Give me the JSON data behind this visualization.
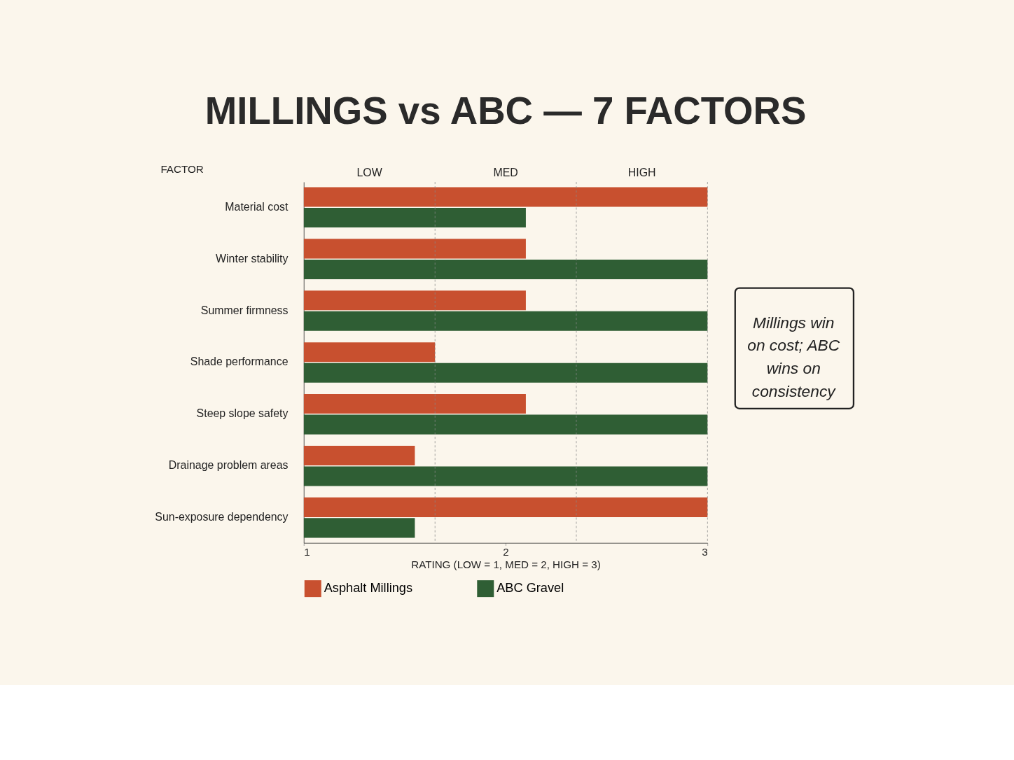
{
  "chart_data": {
    "type": "bar",
    "orientation": "horizontal",
    "title": "MILLINGS vs ABC — 7 FACTORS",
    "categories": [
      "Material cost",
      "Winter stability",
      "Summer firmness",
      "Shade performance",
      "Steep slope safety",
      "Drainage problem areas",
      "Sun-exposure dependency"
    ],
    "series": [
      {
        "name": "Asphalt Millings",
        "color": "#c8502f",
        "values": [
          3,
          2.1,
          2.1,
          1.65,
          2.1,
          1.55,
          3
        ]
      },
      {
        "name": "ABC Gravel",
        "color": "#2f5e34",
        "values": [
          2.1,
          3,
          3,
          3,
          3,
          3,
          1.55
        ]
      }
    ],
    "xlabel": "RATING (LOW = 1, MED = 2, HIGH = 3)",
    "ylabel": "FACTOR",
    "xlim": [
      1,
      3
    ],
    "xticks": [
      1,
      2,
      3
    ],
    "ref_lines": [
      {
        "axis": "x",
        "value": 1.65,
        "line_style": "dashed"
      },
      {
        "axis": "x",
        "value": 2.35,
        "line_style": "dashed"
      },
      {
        "axis": "x",
        "value": 3,
        "line_style": "dashed"
      }
    ],
    "annotations": [
      "LOW",
      "MED",
      "HIGH",
      "Millings win on cost; ABC wins on consistency"
    ],
    "grid": false,
    "legend": "bottom"
  }
}
